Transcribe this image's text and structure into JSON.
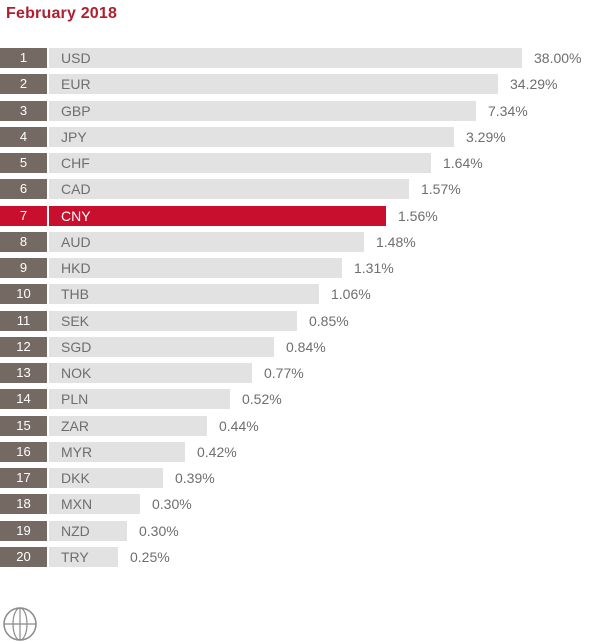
{
  "header": {
    "title": "February 2018"
  },
  "colors": {
    "accent": "#c8102e",
    "title": "#b01e2f",
    "bar": "#e2e2e2",
    "rank_bg": "#756a63",
    "text": "#6e6e6e",
    "highlight_text": "#ffffff"
  },
  "footer": {
    "logo_icon": "globe-icon"
  },
  "chart_data": {
    "type": "bar",
    "orientation": "horizontal",
    "title": "February 2018",
    "ranks": [
      "1",
      "2",
      "3",
      "4",
      "5",
      "6",
      "7",
      "8",
      "9",
      "10",
      "11",
      "12",
      "13",
      "14",
      "15",
      "16",
      "17",
      "18",
      "19",
      "20"
    ],
    "categories": [
      "USD",
      "EUR",
      "GBP",
      "JPY",
      "CHF",
      "CAD",
      "CNY",
      "AUD",
      "HKD",
      "THB",
      "SEK",
      "SGD",
      "NOK",
      "PLN",
      "ZAR",
      "MYR",
      "DKK",
      "MXN",
      "NZD",
      "TRY"
    ],
    "values": [
      38.0,
      34.29,
      7.34,
      3.29,
      1.64,
      1.57,
      1.56,
      1.48,
      1.31,
      1.06,
      0.85,
      0.84,
      0.77,
      0.52,
      0.44,
      0.42,
      0.39,
      0.3,
      0.3,
      0.25
    ],
    "value_labels": [
      "38.00%",
      "34.29%",
      "7.34%",
      "3.29%",
      "1.64%",
      "1.57%",
      "1.56%",
      "1.48%",
      "1.31%",
      "1.06%",
      "0.85%",
      "0.84%",
      "0.77%",
      "0.52%",
      "0.44%",
      "0.42%",
      "0.39%",
      "0.30%",
      "0.30%",
      "0.25%"
    ],
    "highlight": "CNY"
  }
}
